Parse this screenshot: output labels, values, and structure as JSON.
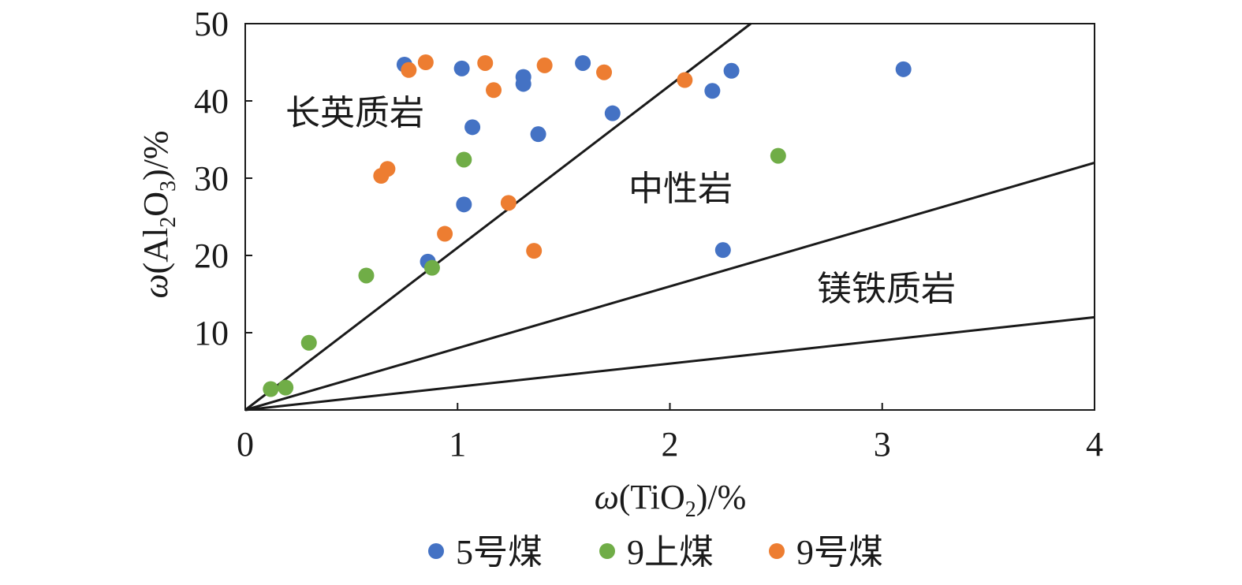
{
  "chart_data": {
    "type": "scatter",
    "x_axis": {
      "label_prefix": "ω",
      "label_main": "(TiO",
      "label_sub": "2",
      "label_suffix": ")/%",
      "range": [
        0,
        4
      ],
      "ticks": [
        "0",
        "1",
        "2",
        "3",
        "4"
      ]
    },
    "y_axis": {
      "label_prefix": "ω",
      "label_main": "(Al",
      "label_sub1": "2",
      "label_mid": "O",
      "label_sub2": "3",
      "label_suffix": ")/%",
      "range": [
        0,
        50
      ],
      "ticks": [
        "10",
        "20",
        "30",
        "40",
        "50"
      ]
    },
    "grid": false,
    "legend_position": "bottom",
    "boundary_lines": [
      {
        "slope": 21
      },
      {
        "slope": 8
      },
      {
        "slope": 3
      }
    ],
    "regions": [
      "长英质岩",
      "中性岩",
      "镁铁质岩"
    ],
    "series": [
      {
        "name": "5号煤",
        "color": "#4472c4",
        "points": [
          {
            "x": 0.75,
            "y": 44.7
          },
          {
            "x": 1.02,
            "y": 44.2
          },
          {
            "x": 1.31,
            "y": 43.1
          },
          {
            "x": 1.31,
            "y": 42.2
          },
          {
            "x": 1.59,
            "y": 44.9
          },
          {
            "x": 2.29,
            "y": 43.9
          },
          {
            "x": 2.2,
            "y": 41.3
          },
          {
            "x": 3.1,
            "y": 44.1
          },
          {
            "x": 1.07,
            "y": 36.6
          },
          {
            "x": 1.38,
            "y": 35.7
          },
          {
            "x": 1.73,
            "y": 38.4
          },
          {
            "x": 1.03,
            "y": 26.6
          },
          {
            "x": 0.86,
            "y": 19.2
          },
          {
            "x": 2.25,
            "y": 20.7
          }
        ]
      },
      {
        "name": "9上煤",
        "color": "#70ad47",
        "points": [
          {
            "x": 1.03,
            "y": 32.4
          },
          {
            "x": 2.51,
            "y": 32.9
          },
          {
            "x": 0.57,
            "y": 17.4
          },
          {
            "x": 0.88,
            "y": 18.4
          },
          {
            "x": 0.3,
            "y": 8.7
          },
          {
            "x": 0.12,
            "y": 2.7
          },
          {
            "x": 0.19,
            "y": 2.9
          }
        ]
      },
      {
        "name": "9号煤",
        "color": "#ed7d31",
        "points": [
          {
            "x": 0.77,
            "y": 44.0
          },
          {
            "x": 0.85,
            "y": 45.0
          },
          {
            "x": 1.13,
            "y": 44.9
          },
          {
            "x": 1.41,
            "y": 44.6
          },
          {
            "x": 1.69,
            "y": 43.7
          },
          {
            "x": 2.07,
            "y": 42.7
          },
          {
            "x": 1.17,
            "y": 41.4
          },
          {
            "x": 0.64,
            "y": 30.3
          },
          {
            "x": 0.67,
            "y": 31.2
          },
          {
            "x": 1.24,
            "y": 26.8
          },
          {
            "x": 0.94,
            "y": 22.8
          },
          {
            "x": 1.36,
            "y": 20.6
          }
        ]
      }
    ]
  }
}
